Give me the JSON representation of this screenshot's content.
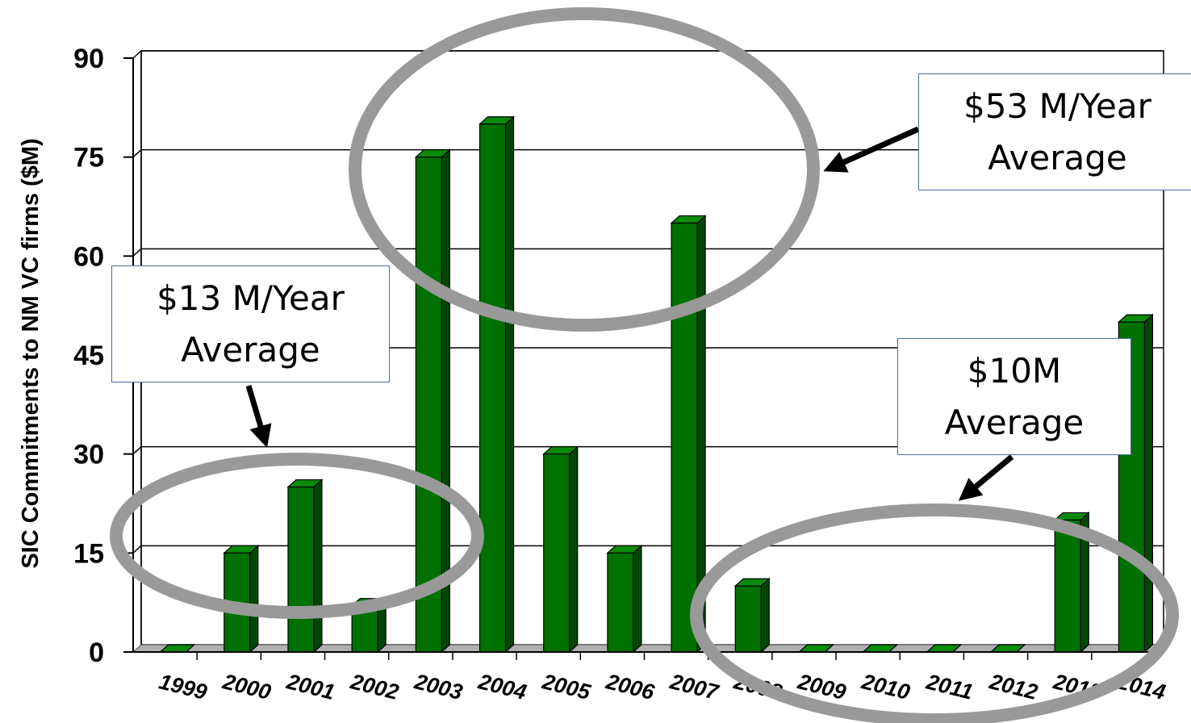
{
  "chart_data": {
    "type": "bar",
    "ylabel": "SIC Commitments to NM VC firms ($M)",
    "ylim": [
      0,
      90
    ],
    "yticks": [
      0,
      15,
      30,
      45,
      60,
      75,
      90
    ],
    "categories": [
      "1999",
      "2000",
      "2001",
      "2002",
      "2003",
      "2004",
      "2005",
      "2006",
      "2007",
      "2008",
      "2009",
      "2010",
      "2011",
      "2012",
      "2013",
      "2014"
    ],
    "values": [
      0,
      15,
      25,
      7,
      75,
      80,
      30,
      15,
      65,
      10,
      0,
      0,
      0,
      0,
      20,
      50
    ],
    "bar_color": "#007000",
    "grid": true,
    "annotations": [
      {
        "line1": "$13 M/Year",
        "line2": "Average"
      },
      {
        "line1": "$53 M/Year",
        "line2": "Average"
      },
      {
        "line1": "$10M",
        "line2": "Average"
      }
    ]
  }
}
